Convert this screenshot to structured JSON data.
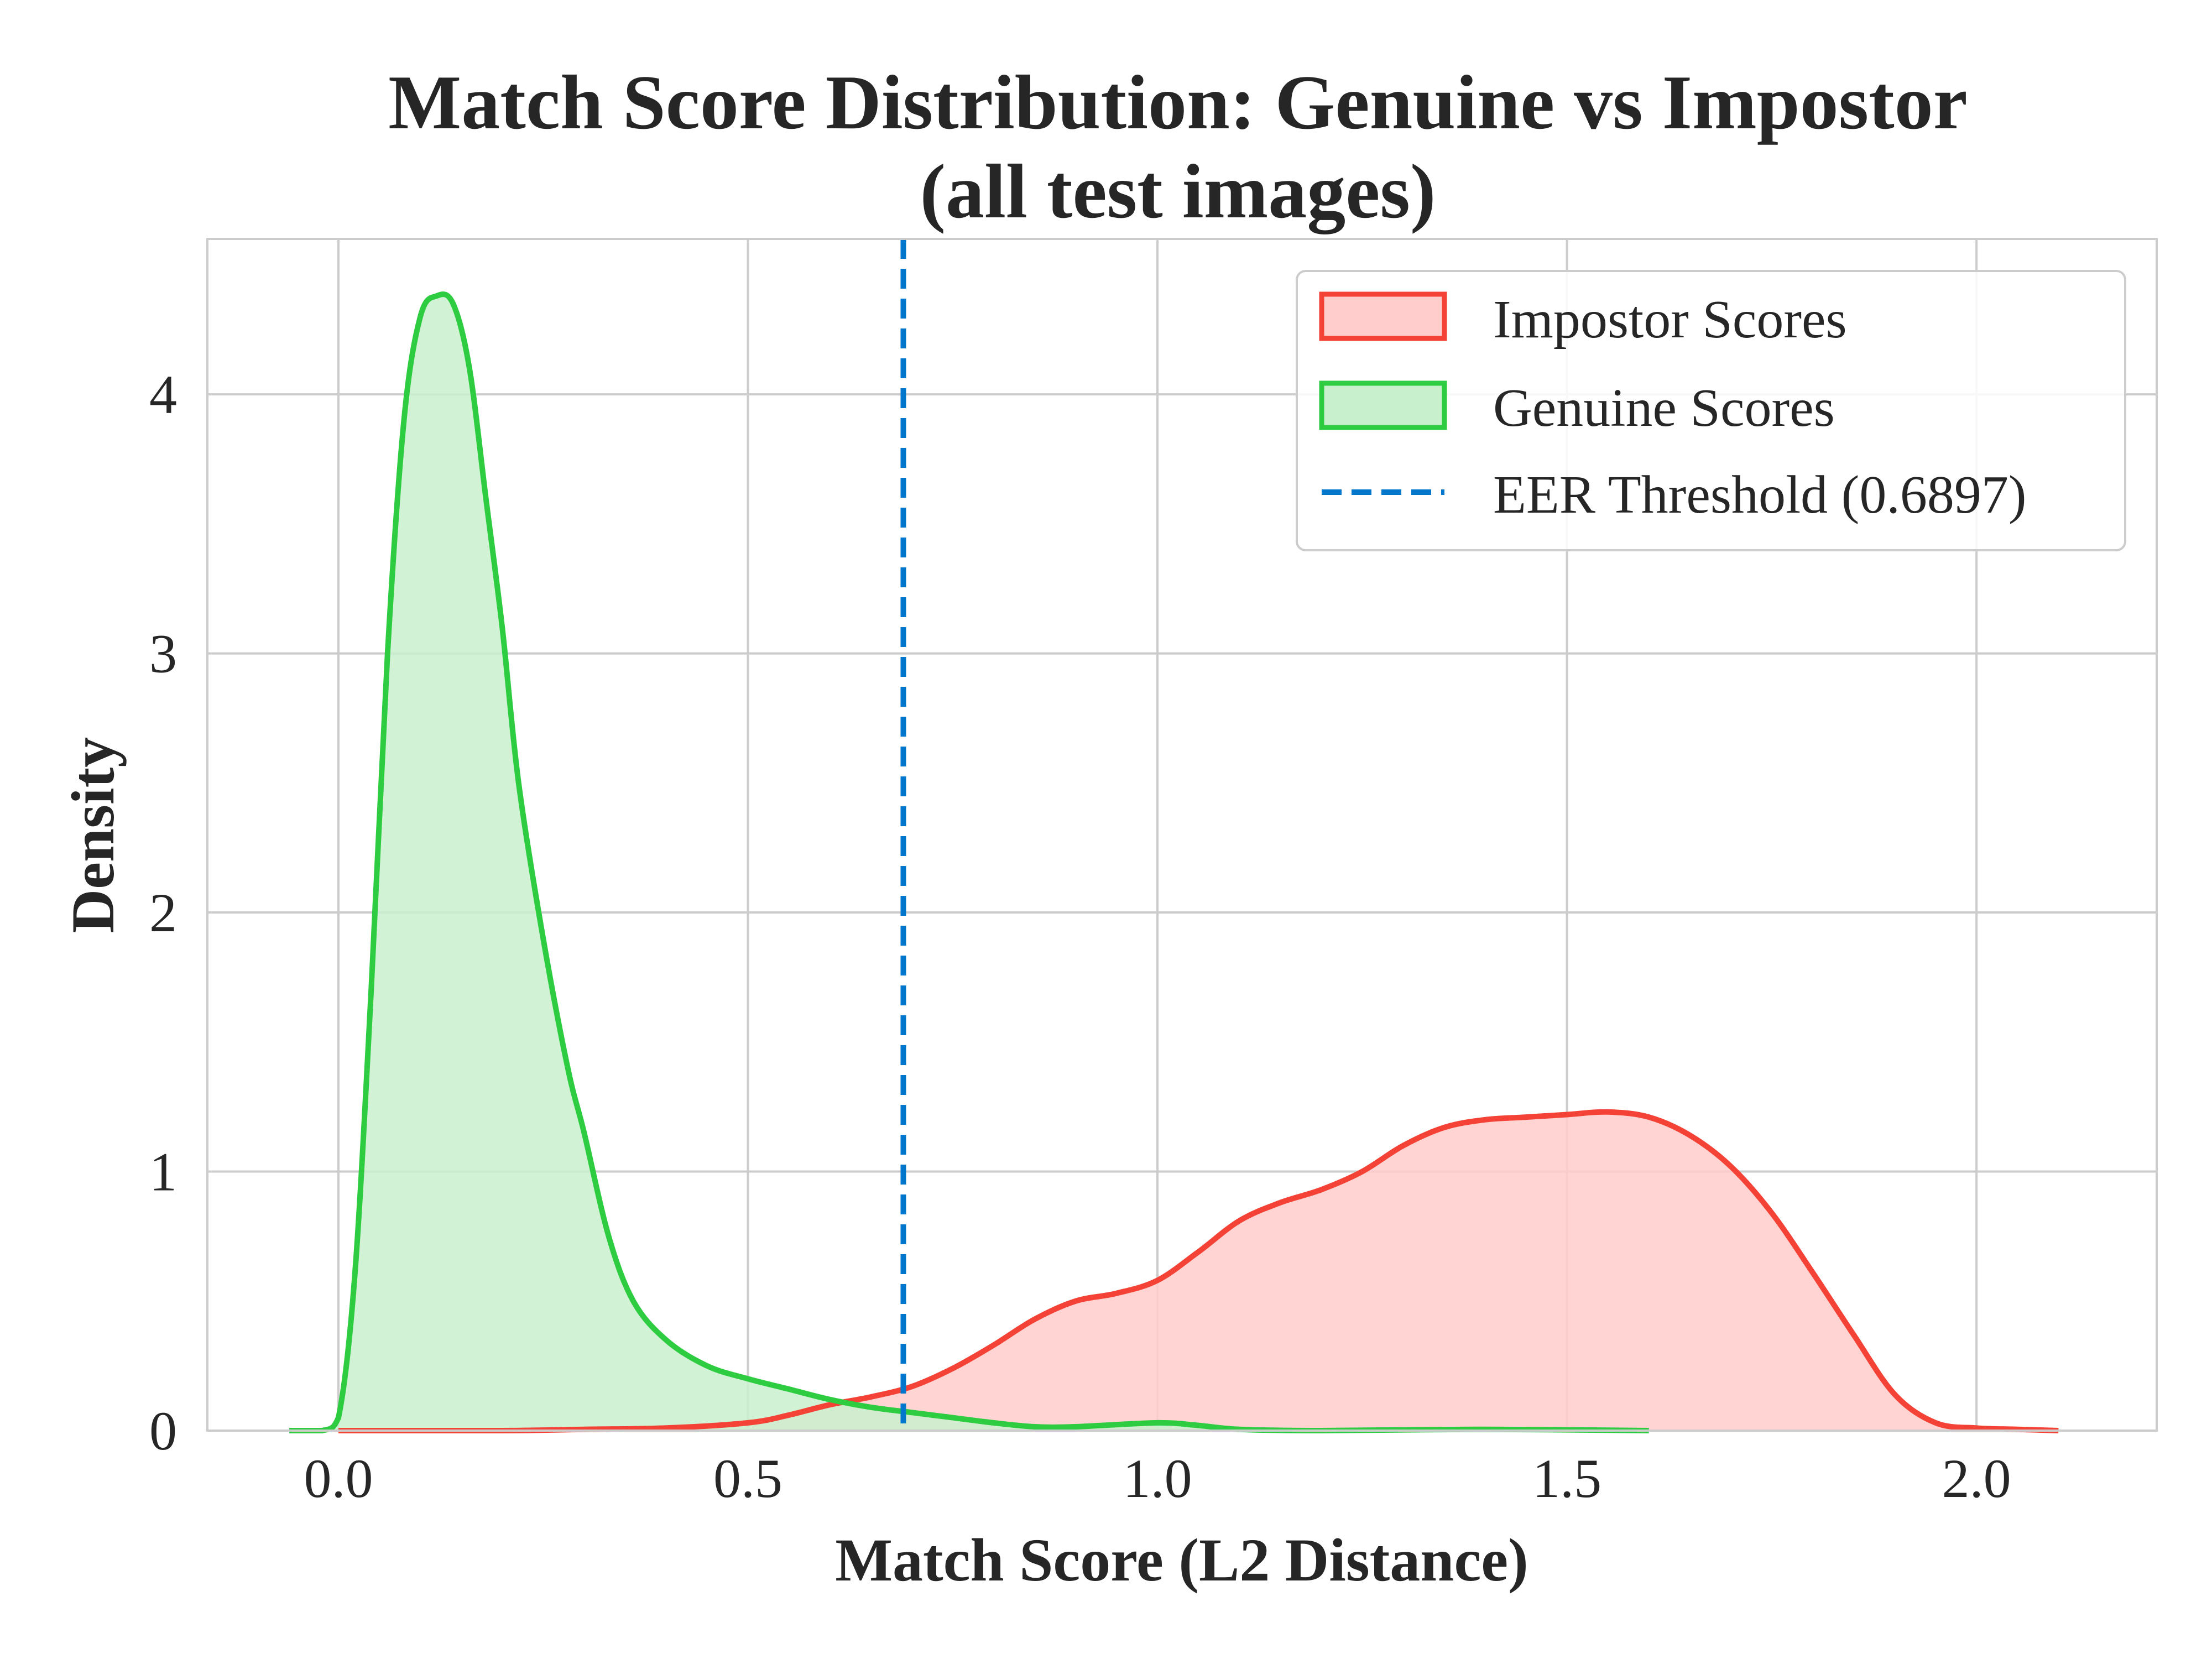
{
  "chart_data": {
    "type": "area",
    "title": "Match Score Distribution: Genuine vs Impostor",
    "subtitle": "(all test images)",
    "xlabel": "Match Score (L2 Distance)",
    "ylabel": "Density",
    "xlim": [
      -0.16,
      2.22
    ],
    "ylim": [
      0,
      4.6
    ],
    "xticks": [
      0.0,
      0.5,
      1.0,
      1.5,
      2.0
    ],
    "xtick_labels": [
      "0.0",
      "0.5",
      "1.0",
      "1.5",
      "2.0"
    ],
    "yticks": [
      0,
      1,
      2,
      3,
      4
    ],
    "ytick_labels": [
      "0",
      "1",
      "2",
      "3",
      "4"
    ],
    "grid": true,
    "legend_position": "top-right",
    "series": [
      {
        "name": "Impostor Scores",
        "color": "#f44336",
        "fill": "#ffcdcb",
        "x": [
          0.0,
          0.2,
          0.3,
          0.4,
          0.5,
          0.55,
          0.6,
          0.65,
          0.7,
          0.75,
          0.8,
          0.85,
          0.9,
          0.95,
          1.0,
          1.05,
          1.1,
          1.15,
          1.2,
          1.25,
          1.3,
          1.35,
          1.4,
          1.45,
          1.5,
          1.55,
          1.6,
          1.65,
          1.7,
          1.75,
          1.8,
          1.85,
          1.9,
          1.95,
          2.0,
          2.05,
          2.1
        ],
        "y": [
          0.0,
          0.0,
          0.005,
          0.01,
          0.03,
          0.06,
          0.1,
          0.13,
          0.17,
          0.24,
          0.33,
          0.43,
          0.5,
          0.53,
          0.58,
          0.69,
          0.81,
          0.88,
          0.93,
          1.0,
          1.1,
          1.17,
          1.2,
          1.21,
          1.22,
          1.23,
          1.21,
          1.14,
          1.02,
          0.84,
          0.61,
          0.37,
          0.14,
          0.03,
          0.01,
          0.005,
          0.0
        ]
      },
      {
        "name": "Genuine Scores",
        "color": "#2ecc40",
        "fill": "#c9f0cc",
        "x": [
          -0.06,
          -0.02,
          0.0,
          0.02,
          0.04,
          0.06,
          0.08,
          0.1,
          0.12,
          0.14,
          0.16,
          0.18,
          0.2,
          0.22,
          0.25,
          0.28,
          0.3,
          0.33,
          0.36,
          0.4,
          0.45,
          0.5,
          0.55,
          0.6,
          0.65,
          0.7,
          0.75,
          0.8,
          0.85,
          0.9,
          1.0,
          1.05,
          1.1,
          1.2,
          1.4,
          1.6
        ],
        "y": [
          0.0,
          0.0,
          0.05,
          0.6,
          1.7,
          3.0,
          3.9,
          4.3,
          4.38,
          4.35,
          4.1,
          3.6,
          3.1,
          2.5,
          1.9,
          1.4,
          1.15,
          0.75,
          0.5,
          0.35,
          0.25,
          0.2,
          0.16,
          0.12,
          0.09,
          0.07,
          0.05,
          0.03,
          0.015,
          0.015,
          0.03,
          0.02,
          0.005,
          0.0,
          0.005,
          0.0
        ]
      }
    ],
    "threshold": {
      "name": "EER Threshold (0.6897)",
      "value": 0.6897,
      "color": "#0077cc",
      "style": "dashed"
    }
  }
}
